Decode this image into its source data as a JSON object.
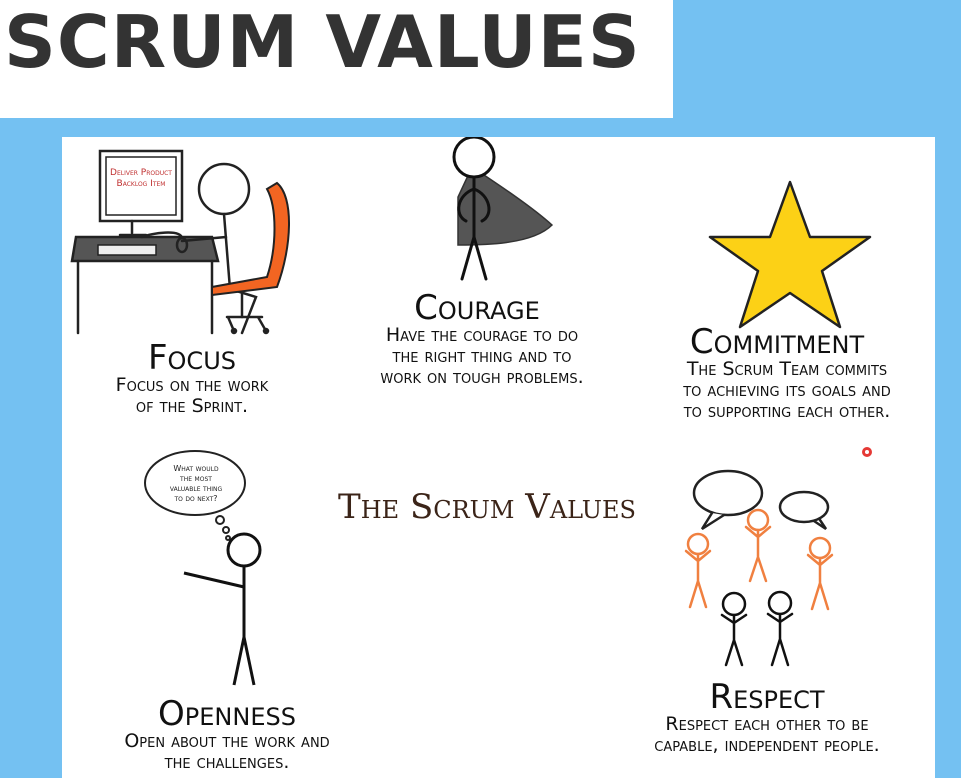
{
  "header": {
    "title": "SCRUM VALUES"
  },
  "center_title": "The Scrum Values",
  "values": {
    "focus": {
      "title": "Focus",
      "desc_line1": "Focus on the work",
      "desc_line2": "of the Sprint."
    },
    "courage": {
      "title": "Courage",
      "desc_line1": "Have the courage to do",
      "desc_line2": "the right thing and to",
      "desc_line3": "work on tough problems."
    },
    "commitment": {
      "title": "Commitment",
      "desc_line1": "The Scrum Team commits",
      "desc_line2": "to achieving its goals and",
      "desc_line3": "to supporting each other."
    },
    "openness": {
      "title": "Openness",
      "desc_line1": "Open about the work and",
      "desc_line2": "the challenges."
    },
    "respect": {
      "title": "Respect",
      "desc_line1": "Respect each other to be",
      "desc_line2": "capable, independent people."
    }
  },
  "monitor_label": {
    "line1": "Deliver Product",
    "line2": "Backlog Item"
  },
  "thought_bubble": {
    "line1": "What would",
    "line2": "the most",
    "line3": "valuable thing",
    "line4": "to do next?"
  },
  "colors": {
    "background": "#74c1f2",
    "chair": "#f26522",
    "star": "#fcd116",
    "cape": "#5a5a5a",
    "orange_people": "#f08040"
  }
}
